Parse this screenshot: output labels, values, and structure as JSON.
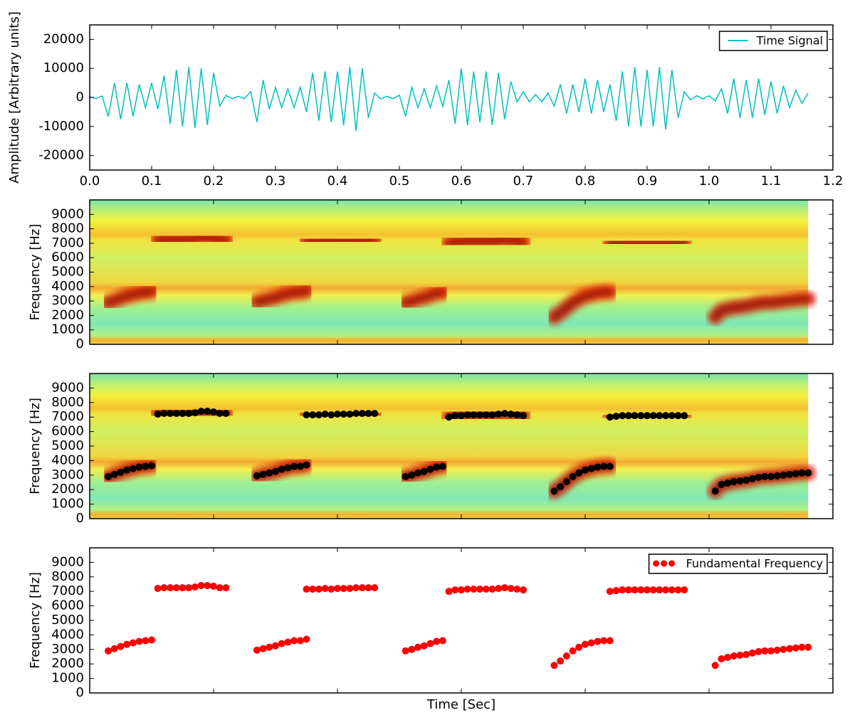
{
  "chart_data": [
    {
      "type": "line",
      "ylabel": "Amplitude [Arbitrary units]",
      "xlim": [
        0,
        1.2
      ],
      "ylim": [
        -25000,
        25000
      ],
      "xticks": [
        {
          "value": 0,
          "label": "0.0"
        },
        0.1,
        0.2,
        0.3,
        0.4,
        0.5,
        0.6,
        0.7,
        0.8,
        0.9,
        {
          "value": 1,
          "label": "1.0"
        },
        1.1,
        1.2
      ],
      "yticks": [
        -20000,
        -10000,
        0,
        10000,
        20000
      ],
      "legend": "upper right",
      "x": [
        0,
        0.01,
        0.02,
        0.03,
        0.04,
        0.05,
        0.06,
        0.07,
        0.08,
        0.09,
        0.1,
        0.11,
        0.12,
        0.13,
        0.14,
        0.15,
        0.16,
        0.17,
        0.18,
        0.19,
        0.2,
        0.21,
        0.22,
        0.23,
        0.24,
        0.25,
        0.26,
        0.27,
        0.28,
        0.29,
        0.3,
        0.31,
        0.32,
        0.33,
        0.34,
        0.35,
        0.36,
        0.37,
        0.38,
        0.39,
        0.4,
        0.41,
        0.42,
        0.43,
        0.44,
        0.45,
        0.46,
        0.47,
        0.48,
        0.49,
        0.5,
        0.51,
        0.52,
        0.53,
        0.54,
        0.55,
        0.56,
        0.57,
        0.58,
        0.59,
        0.6,
        0.61,
        0.62,
        0.63,
        0.64,
        0.65,
        0.66,
        0.67,
        0.68,
        0.69,
        0.7,
        0.71,
        0.72,
        0.73,
        0.74,
        0.75,
        0.76,
        0.77,
        0.78,
        0.79,
        0.8,
        0.81,
        0.82,
        0.83,
        0.84,
        0.85,
        0.86,
        0.87,
        0.88,
        0.89,
        0.9,
        0.91,
        0.92,
        0.93,
        0.94,
        0.95,
        0.96,
        0.97,
        0.98,
        0.99,
        1,
        1.01,
        1.02,
        1.03,
        1.04,
        1.05,
        1.06,
        1.07,
        1.08,
        1.09,
        1.1,
        1.11,
        1.12,
        1.13,
        1.14,
        1.15,
        1.16
      ],
      "series": [
        {
          "name": "Time Signal",
          "color": "#00bfbf",
          "values": [
            300,
            -400,
            500,
            -6500,
            5000,
            -7500,
            5000,
            -6500,
            4500,
            -3500,
            5000,
            -4000,
            7500,
            -9000,
            9500,
            -10000,
            10500,
            -10500,
            10000,
            -9500,
            8500,
            -3000,
            700,
            -400,
            400,
            -400,
            2000,
            -8500,
            6000,
            -4000,
            3500,
            -3500,
            3000,
            -3500,
            3500,
            -5000,
            8500,
            -8000,
            9000,
            -8500,
            9000,
            -9500,
            10500,
            -11500,
            10000,
            -7000,
            1500,
            -500,
            400,
            -400,
            800,
            -6500,
            3500,
            -3500,
            3000,
            -3500,
            4000,
            -3000,
            6000,
            -9000,
            10000,
            -9500,
            9000,
            -8500,
            9000,
            -9500,
            8500,
            -7500,
            5500,
            -1500,
            2000,
            -1500,
            1000,
            -1500,
            1500,
            -3000,
            4500,
            -5500,
            4500,
            -5000,
            6500,
            -5500,
            6000,
            -5000,
            4500,
            -8000,
            9000,
            -10000,
            10500,
            -10000,
            9500,
            -10000,
            10500,
            -11000,
            9500,
            -7000,
            2000,
            -800,
            600,
            -500,
            600,
            -1200,
            3000,
            -5500,
            6500,
            -7000,
            6000,
            -7000,
            6500,
            -6000,
            5500,
            -5500,
            4000,
            -3500,
            2500,
            -2000,
            1500
          ]
        }
      ]
    },
    {
      "type": "spectrogram",
      "ylabel": "Frequency [Hz]",
      "xlim": [
        0,
        1.2
      ],
      "ylim": [
        0,
        10000
      ],
      "xticks": [
        0,
        0.2,
        0.4,
        0.6,
        0.8,
        1,
        1.2
      ],
      "yticks": [
        0,
        1000,
        2000,
        3000,
        4000,
        5000,
        6000,
        7000,
        8000,
        9000
      ]
    },
    {
      "type": "scatter",
      "spectrogram": true,
      "ylabel": "Frequency [Hz]",
      "xlim": [
        0,
        1.2
      ],
      "ylim": [
        0,
        10000
      ],
      "xticks": [
        0,
        0.2,
        0.4,
        0.6,
        0.8,
        1,
        1.2
      ],
      "yticks": [
        0,
        1000,
        2000,
        3000,
        4000,
        5000,
        6000,
        7000,
        8000,
        9000
      ],
      "x": [
        0.03,
        0.04,
        0.05,
        0.06,
        0.07,
        0.08,
        0.09,
        0.1,
        0.11,
        0.12,
        0.13,
        0.14,
        0.15,
        0.16,
        0.17,
        0.18,
        0.19,
        0.2,
        0.21,
        0.22,
        0.27,
        0.28,
        0.29,
        0.3,
        0.31,
        0.32,
        0.33,
        0.34,
        0.35,
        0.35,
        0.36,
        0.37,
        0.38,
        0.39,
        0.4,
        0.41,
        0.42,
        0.43,
        0.44,
        0.45,
        0.46,
        0.51,
        0.52,
        0.53,
        0.54,
        0.55,
        0.56,
        0.57,
        0.58,
        0.59,
        0.6,
        0.61,
        0.62,
        0.63,
        0.64,
        0.65,
        0.66,
        0.67,
        0.68,
        0.69,
        0.7,
        0.75,
        0.76,
        0.77,
        0.78,
        0.79,
        0.8,
        0.81,
        0.82,
        0.83,
        0.84,
        0.84,
        0.85,
        0.86,
        0.87,
        0.88,
        0.89,
        0.9,
        0.91,
        0.92,
        0.93,
        0.94,
        0.95,
        0.96,
        1.01,
        1.02,
        1.03,
        1.04,
        1.05,
        1.06,
        1.07,
        1.08,
        1.09,
        1.1,
        1.11,
        1.12,
        1.13,
        1.14,
        1.15,
        1.16
      ],
      "series": [
        {
          "color": "#000000",
          "values": [
            2900,
            3050,
            3200,
            3350,
            3450,
            3550,
            3600,
            3650,
            7200,
            7250,
            7250,
            7250,
            7250,
            7250,
            7300,
            7400,
            7400,
            7350,
            7250,
            7250,
            2950,
            3050,
            3150,
            3250,
            3400,
            3500,
            3600,
            3600,
            3700,
            7150,
            7150,
            7150,
            7200,
            7150,
            7200,
            7200,
            7200,
            7250,
            7250,
            7250,
            7250,
            2900,
            3000,
            3150,
            3250,
            3400,
            3550,
            3600,
            7000,
            7100,
            7100,
            7150,
            7150,
            7150,
            7150,
            7150,
            7200,
            7250,
            7200,
            7150,
            7100,
            1900,
            2200,
            2550,
            2900,
            3150,
            3350,
            3450,
            3550,
            3600,
            3600,
            7000,
            7050,
            7100,
            7100,
            7100,
            7100,
            7100,
            7100,
            7100,
            7100,
            7100,
            7100,
            7100,
            1900,
            2350,
            2450,
            2550,
            2600,
            2650,
            2750,
            2850,
            2900,
            2900,
            2950,
            3000,
            3050,
            3100,
            3150,
            3150
          ]
        }
      ]
    },
    {
      "type": "scatter",
      "ylabel": "Frequency [Hz]",
      "xlabel": "Time [Sec]",
      "xlim": [
        0,
        1.2
      ],
      "ylim": [
        0,
        10000
      ],
      "xticks": [
        0,
        0.2,
        0.4,
        0.6,
        0.8,
        1,
        1.2
      ],
      "yticks": [
        0,
        1000,
        2000,
        3000,
        4000,
        5000,
        6000,
        7000,
        8000,
        9000
      ],
      "legend": "upper right",
      "x": [
        0.03,
        0.04,
        0.05,
        0.06,
        0.07,
        0.08,
        0.09,
        0.1,
        0.11,
        0.12,
        0.13,
        0.14,
        0.15,
        0.16,
        0.17,
        0.18,
        0.19,
        0.2,
        0.21,
        0.22,
        0.27,
        0.28,
        0.29,
        0.3,
        0.31,
        0.32,
        0.33,
        0.34,
        0.35,
        0.35,
        0.36,
        0.37,
        0.38,
        0.39,
        0.4,
        0.41,
        0.42,
        0.43,
        0.44,
        0.45,
        0.46,
        0.51,
        0.52,
        0.53,
        0.54,
        0.55,
        0.56,
        0.57,
        0.58,
        0.59,
        0.6,
        0.61,
        0.62,
        0.63,
        0.64,
        0.65,
        0.66,
        0.67,
        0.68,
        0.69,
        0.7,
        0.75,
        0.76,
        0.77,
        0.78,
        0.79,
        0.8,
        0.81,
        0.82,
        0.83,
        0.84,
        0.84,
        0.85,
        0.86,
        0.87,
        0.88,
        0.89,
        0.9,
        0.91,
        0.92,
        0.93,
        0.94,
        0.95,
        0.96,
        1.01,
        1.02,
        1.03,
        1.04,
        1.05,
        1.06,
        1.07,
        1.08,
        1.09,
        1.1,
        1.11,
        1.12,
        1.13,
        1.14,
        1.15,
        1.16
      ],
      "series": [
        {
          "name": "Fundamental Frequency",
          "color": "#ff0000",
          "values": [
            2900,
            3050,
            3200,
            3350,
            3450,
            3550,
            3600,
            3650,
            7200,
            7250,
            7250,
            7250,
            7250,
            7250,
            7300,
            7400,
            7400,
            7350,
            7250,
            7250,
            2950,
            3050,
            3150,
            3250,
            3400,
            3500,
            3600,
            3600,
            3700,
            7150,
            7150,
            7150,
            7200,
            7150,
            7200,
            7200,
            7200,
            7250,
            7250,
            7250,
            7250,
            2900,
            3000,
            3150,
            3250,
            3400,
            3550,
            3600,
            7000,
            7100,
            7100,
            7150,
            7150,
            7150,
            7150,
            7150,
            7200,
            7250,
            7200,
            7150,
            7100,
            1900,
            2200,
            2550,
            2900,
            3150,
            3350,
            3450,
            3550,
            3600,
            3600,
            7000,
            7050,
            7100,
            7100,
            7100,
            7100,
            7100,
            7100,
            7100,
            7100,
            7100,
            7100,
            7100,
            1900,
            2350,
            2450,
            2550,
            2600,
            2650,
            2750,
            2850,
            2900,
            2900,
            2950,
            3000,
            3050,
            3100,
            3150,
            3150
          ]
        }
      ]
    }
  ]
}
